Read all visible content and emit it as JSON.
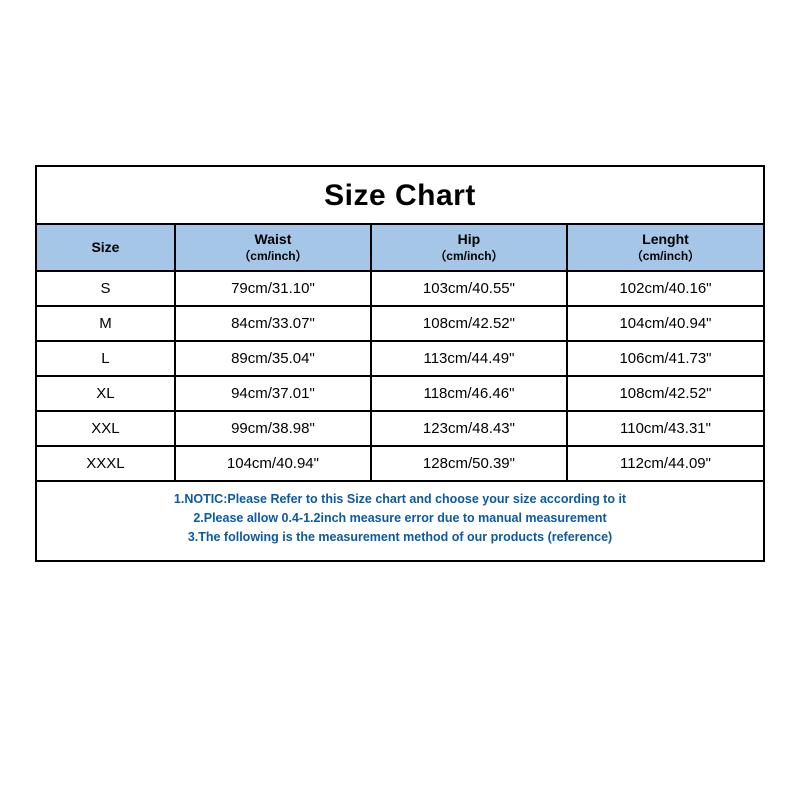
{
  "title": "Size Chart",
  "colors": {
    "header_bg": "#a5c6e7",
    "border": "#000000",
    "note_text": "#0a5aa6",
    "background": "#ffffff"
  },
  "columns": [
    {
      "label": "Size",
      "sub": ""
    },
    {
      "label": "Waist",
      "sub": "（cm/inch）"
    },
    {
      "label": "Hip",
      "sub": "（cm/inch）"
    },
    {
      "label": "Lenght",
      "sub": "（cm/inch）"
    }
  ],
  "rows": [
    {
      "size": "S",
      "waist": "79cm/31.10\"",
      "hip": "103cm/40.55\"",
      "length": "102cm/40.16\""
    },
    {
      "size": "M",
      "waist": "84cm/33.07\"",
      "hip": "108cm/42.52\"",
      "length": "104cm/40.94\""
    },
    {
      "size": "L",
      "waist": "89cm/35.04\"",
      "hip": "113cm/44.49\"",
      "length": "106cm/41.73\""
    },
    {
      "size": "XL",
      "waist": "94cm/37.01\"",
      "hip": "118cm/46.46\"",
      "length": "108cm/42.52\""
    },
    {
      "size": "XXL",
      "waist": "99cm/38.98\"",
      "hip": "123cm/48.43\"",
      "length": "110cm/43.31\""
    },
    {
      "size": "XXXL",
      "waist": "104cm/40.94\"",
      "hip": "128cm/50.39\"",
      "length": "112cm/44.09\""
    }
  ],
  "notes": [
    "1.NOTIC:Please Refer to this Size chart and choose your size according to it",
    "2.Please allow 0.4-1.2inch measure error due to manual measurement",
    "3.The following is the measurement method of our products (reference)"
  ]
}
